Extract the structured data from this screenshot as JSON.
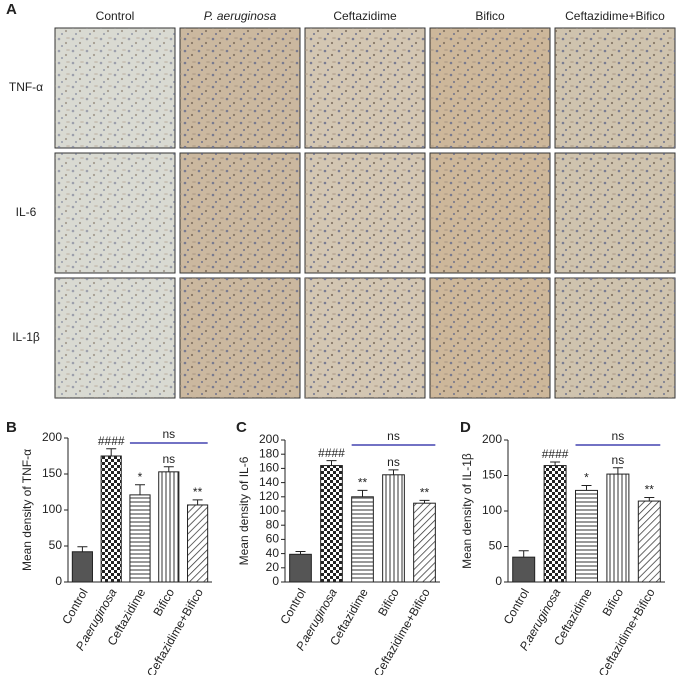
{
  "panel_labels": [
    "A",
    "B",
    "C",
    "D"
  ],
  "micrographs": {
    "columns": [
      "Control",
      "P. aeruginosa",
      "Ceftazidime",
      "Bifico",
      "Ceftazidime+Bifico"
    ],
    "column_italic": [
      false,
      true,
      false,
      false,
      false
    ],
    "rows": [
      "TNF-α",
      "IL-6",
      "IL-1β"
    ]
  },
  "chart_data": [
    {
      "type": "bar",
      "ylabel": "Mean density of TNF-α",
      "categories": [
        "Control",
        "P.aeruginosa",
        "Ceftazidime",
        "Bifico",
        "Ceftazidime+Bifico"
      ],
      "italic": [
        false,
        true,
        false,
        false,
        false
      ],
      "values": [
        42,
        175,
        121,
        153,
        107
      ],
      "errors": [
        7,
        10,
        14,
        7,
        7
      ],
      "significance": [
        null,
        "####",
        "*",
        "ns",
        "**"
      ],
      "patterns": [
        "solid",
        "checker",
        "horizontal",
        "vertical",
        "diagonal"
      ],
      "comparison": {
        "label": "ns",
        "from": 2,
        "to": 4,
        "color": "#1f1fa0"
      },
      "ylim": [
        0,
        200
      ],
      "yticks": [
        0,
        50,
        100,
        150,
        200
      ]
    },
    {
      "type": "bar",
      "ylabel": "Mean density of IL-6",
      "categories": [
        "Control",
        "P.aeruginosa",
        "Ceftazidime",
        "Bifico",
        "Ceftazidime+Bifico"
      ],
      "italic": [
        false,
        true,
        false,
        false,
        false
      ],
      "values": [
        39,
        164,
        120,
        151,
        111
      ],
      "errors": [
        4,
        7,
        9,
        7,
        4
      ],
      "significance": [
        null,
        "####",
        "**",
        "ns",
        "**"
      ],
      "patterns": [
        "solid",
        "checker",
        "horizontal",
        "vertical",
        "diagonal"
      ],
      "comparison": {
        "label": "ns",
        "from": 2,
        "to": 4,
        "color": "#1f1fa0"
      },
      "ylim": [
        0,
        200
      ],
      "yticks": [
        0,
        20,
        40,
        60,
        80,
        100,
        120,
        140,
        160,
        180,
        200
      ]
    },
    {
      "type": "bar",
      "ylabel": "Mean density of IL-1β",
      "categories": [
        "Control",
        "P.aeruginosa",
        "Ceftazidime",
        "Bifico",
        "Ceftazidime+Bifico"
      ],
      "italic": [
        false,
        true,
        false,
        false,
        false
      ],
      "values": [
        35,
        164,
        129,
        152,
        114
      ],
      "errors": [
        9,
        5,
        7,
        9,
        5
      ],
      "significance": [
        null,
        "####",
        "*",
        "ns",
        "**"
      ],
      "patterns": [
        "solid",
        "checker",
        "horizontal",
        "vertical",
        "diagonal"
      ],
      "comparison": {
        "label": "ns",
        "from": 2,
        "to": 4,
        "color": "#1f1fa0"
      },
      "ylim": [
        0,
        200
      ],
      "yticks": [
        0,
        50,
        100,
        150,
        200
      ]
    }
  ]
}
